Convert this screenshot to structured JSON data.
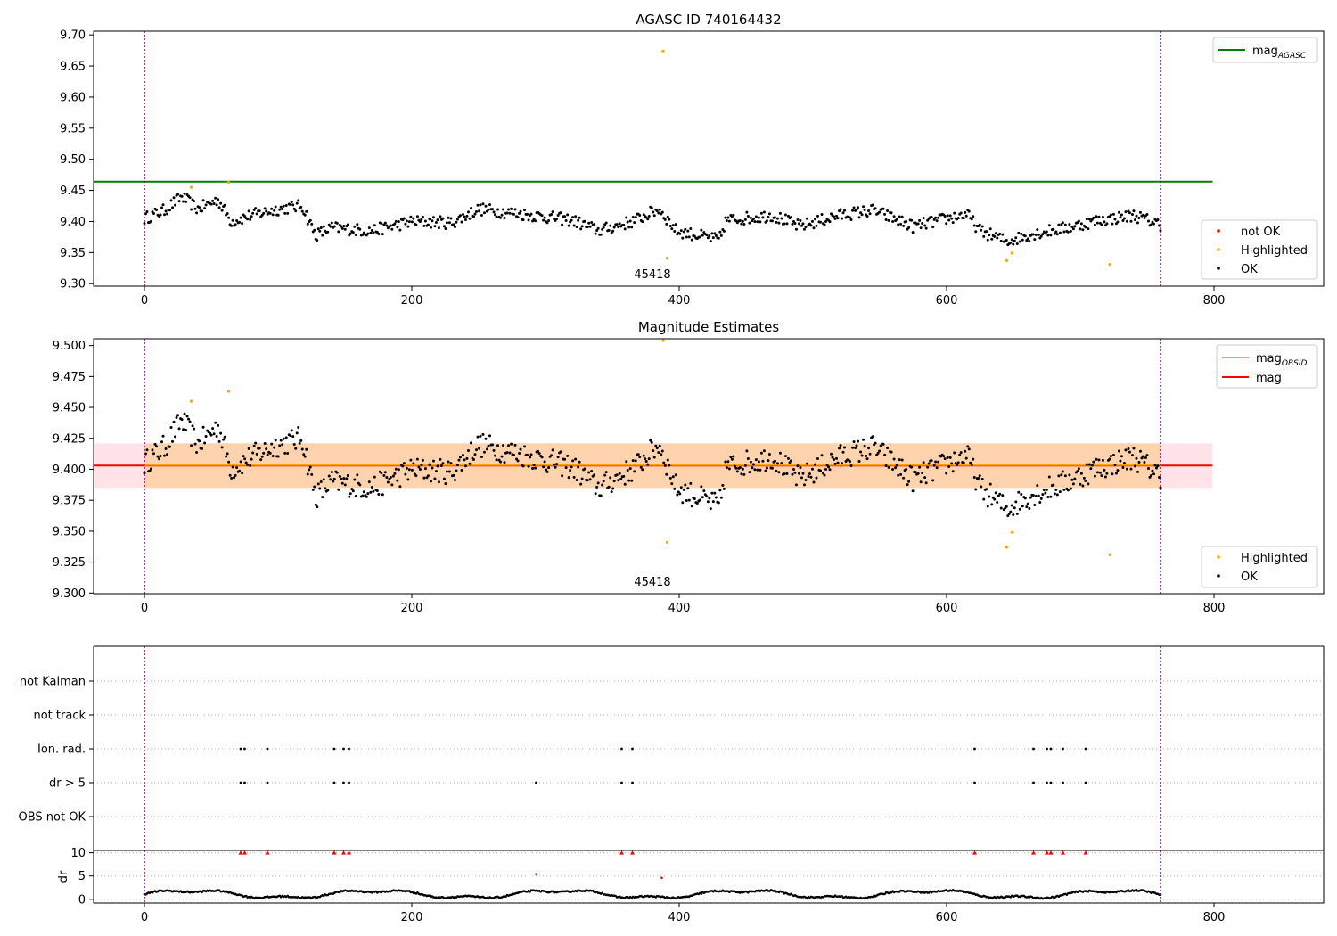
{
  "chart_data": [
    {
      "type": "scatter",
      "title": "AGASC ID 740164432",
      "xlim": [
        -38,
        882
      ],
      "ylim": [
        9.296,
        9.706
      ],
      "xticks": [
        0,
        200,
        400,
        600,
        800
      ],
      "yticks": [
        9.3,
        9.35,
        9.4,
        9.45,
        9.5,
        9.55,
        9.6,
        9.65,
        9.7
      ],
      "ytick_labels": [
        "9.30",
        "9.35",
        "9.40",
        "9.45",
        "9.50",
        "9.55",
        "9.60",
        "9.65",
        "9.70"
      ],
      "obsid_label": "45418",
      "obsid_boundaries": [
        0,
        760
      ],
      "reference_lines": [
        {
          "name": "mag",
          "subscript": "AGASC",
          "y": 9.464,
          "x_range": [
            -38,
            799
          ],
          "color": "#008000"
        }
      ],
      "legend_lines": [
        {
          "name": "mag",
          "subscript": "AGASC",
          "color": "#008000"
        }
      ],
      "legend_points": [
        {
          "name": "not OK",
          "color": "#ff0000"
        },
        {
          "name": "Highlighted",
          "color": "#ffa500"
        },
        {
          "name": "OK",
          "color": "#000000"
        }
      ],
      "highlighted_points": {
        "x": [
          35,
          63,
          388,
          391,
          645,
          649,
          722
        ],
        "y": [
          9.455,
          9.463,
          9.674,
          9.341,
          9.337,
          9.349,
          9.331
        ]
      },
      "series_model": {
        "name": "OK",
        "x_range": [
          0,
          760
        ],
        "n": 760
      }
    },
    {
      "type": "scatter",
      "title": "Magnitude Estimates",
      "xlim": [
        -38,
        882
      ],
      "ylim": [
        9.2995,
        9.5055
      ],
      "xticks": [
        0,
        200,
        400,
        600,
        800
      ],
      "yticks": [
        9.3,
        9.325,
        9.35,
        9.375,
        9.4,
        9.425,
        9.45,
        9.475,
        9.5
      ],
      "ytick_labels": [
        "9.300",
        "9.325",
        "9.350",
        "9.375",
        "9.400",
        "9.425",
        "9.450",
        "9.475",
        "9.500"
      ],
      "obsid_label": "45418",
      "obsid_boundaries": [
        0,
        760
      ],
      "bands": [
        {
          "x_range": [
            -38,
            799
          ],
          "y_range": [
            9.385,
            9.421
          ],
          "color": "#ffc0cb",
          "opacity": 0.45
        },
        {
          "x_range": [
            0,
            760
          ],
          "y_range": [
            9.385,
            9.421
          ],
          "color": "#ffa500",
          "opacity": 0.25
        }
      ],
      "reference_lines": [
        {
          "name": "mag",
          "y": 9.403,
          "x_range": [
            -38,
            799
          ],
          "color": "#ff0000"
        },
        {
          "name": "mag",
          "subscript": "OBSID",
          "y": 9.4035,
          "x_range": [
            0,
            760
          ],
          "color": "#ffa500"
        }
      ],
      "legend_lines": [
        {
          "name": "mag",
          "subscript": "OBSID",
          "color": "#ffa500"
        },
        {
          "name": "mag",
          "color": "#ff0000"
        }
      ],
      "legend_points": [
        {
          "name": "Highlighted",
          "color": "#ffa500"
        },
        {
          "name": "OK",
          "color": "#000000"
        }
      ],
      "highlighted_points": {
        "x": [
          35,
          63,
          388,
          391,
          645,
          649,
          722
        ],
        "y": [
          9.455,
          9.463,
          9.504,
          9.341,
          9.337,
          9.349,
          9.331
        ]
      },
      "series_model": {
        "name": "OK",
        "x_range": [
          0,
          760
        ],
        "n": 760
      }
    },
    {
      "type": "scatter",
      "title": "",
      "xlim": [
        -38,
        882
      ],
      "categories": [
        "OBS not OK",
        "dr > 5",
        "Ion. rad.",
        "not track",
        "not Kalman"
      ],
      "obsid_boundaries": [
        0,
        760
      ],
      "flag_points": {
        "dr > 5": [
          72,
          75,
          92,
          142,
          149,
          153,
          293,
          357,
          365,
          621,
          665,
          675,
          678,
          687,
          704
        ],
        "Ion. rad.": [
          72,
          75,
          92,
          142,
          149,
          153,
          357,
          365,
          621,
          665,
          675,
          678,
          687,
          704
        ]
      }
    },
    {
      "type": "scatter",
      "ylabel": "dr",
      "xlim": [
        -38,
        882
      ],
      "ylim": [
        -0.8,
        10.5
      ],
      "xticks": [
        0,
        200,
        400,
        600,
        800
      ],
      "yticks": [
        0,
        5,
        10
      ],
      "obsid_boundaries": [
        0,
        760
      ],
      "clipped_points": {
        "x": [
          72,
          75,
          92,
          142,
          149,
          153,
          357,
          365,
          621,
          665,
          675,
          678,
          687,
          704
        ],
        "y": 10
      },
      "outliers": {
        "x": [
          293,
          387
        ],
        "y": [
          5.4,
          4.6
        ]
      },
      "series_model": {
        "name": "dr",
        "x_range": [
          0,
          760
        ],
        "n": 760
      }
    }
  ]
}
